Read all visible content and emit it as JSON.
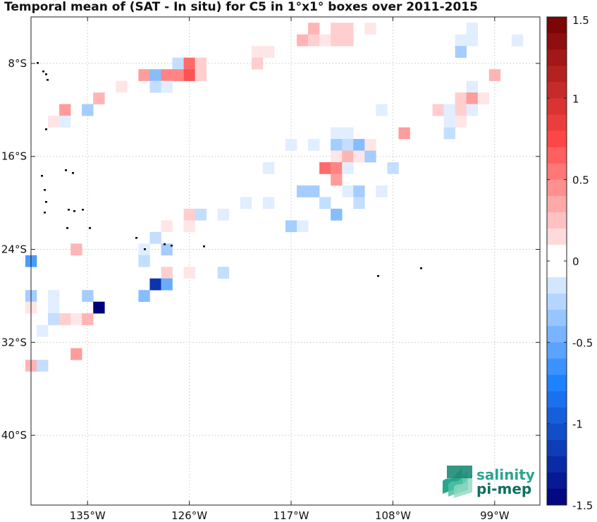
{
  "chart_data": {
    "type": "heatmap",
    "title": "Temporal mean of (SAT - In situ) for C5 in 1°x1° boxes over 2011-2015",
    "x_ticks": [
      "135°W",
      "126°W",
      "117°W",
      "108°W",
      "99°W"
    ],
    "x_tick_values": [
      -135,
      -126,
      -117,
      -108,
      -99
    ],
    "y_ticks": [
      "8°S",
      "16°S",
      "24°S",
      "32°S",
      "40°S"
    ],
    "y_tick_values": [
      -8,
      -16,
      -24,
      -32,
      -40
    ],
    "xlim": [
      -140,
      -95
    ],
    "ylim": [
      -46,
      -4
    ],
    "grid": true,
    "colorbar": {
      "min": -1.5,
      "max": 1.5,
      "step": 0.1,
      "tick_values": [
        1.5,
        1,
        0.5,
        0,
        -0.5,
        -1,
        -1.5
      ],
      "tick_labels": [
        "1.5",
        "1",
        "0.5",
        "0",
        "-0.5",
        "-1",
        "-1.5"
      ]
    },
    "cells": [
      {
        "lon": -115,
        "lat": -5,
        "v": 0.3
      },
      {
        "lon": -113,
        "lat": -5,
        "v": 0.2
      },
      {
        "lon": -112,
        "lat": -5,
        "v": 0.2
      },
      {
        "lon": -110,
        "lat": -5,
        "v": 0.1
      },
      {
        "lon": -101,
        "lat": -5,
        "v": -0.1
      },
      {
        "lon": -116,
        "lat": -6,
        "v": 0.3
      },
      {
        "lon": -115,
        "lat": -6,
        "v": 0.2
      },
      {
        "lon": -114,
        "lat": -6,
        "v": 0.1
      },
      {
        "lon": -113,
        "lat": -6,
        "v": 0.2
      },
      {
        "lon": -112,
        "lat": -6,
        "v": 0.2
      },
      {
        "lon": -102,
        "lat": -6,
        "v": -0.1
      },
      {
        "lon": -101,
        "lat": -6,
        "v": -0.1
      },
      {
        "lon": -97,
        "lat": -6,
        "v": -0.1
      },
      {
        "lon": -120,
        "lat": -7,
        "v": 0.1
      },
      {
        "lon": -119,
        "lat": -7,
        "v": 0.1
      },
      {
        "lon": -102,
        "lat": -7,
        "v": -0.3
      },
      {
        "lon": -127,
        "lat": -8,
        "v": -0.2
      },
      {
        "lon": -126,
        "lat": -8,
        "v": 0.6
      },
      {
        "lon": -125,
        "lat": -8,
        "v": 0.2
      },
      {
        "lon": -120,
        "lat": -8,
        "v": 0.2
      },
      {
        "lon": -130,
        "lat": -9,
        "v": 0.4
      },
      {
        "lon": -129,
        "lat": -9,
        "v": -0.4
      },
      {
        "lon": -128,
        "lat": -9,
        "v": 0.5
      },
      {
        "lon": -127,
        "lat": -9,
        "v": 0.5
      },
      {
        "lon": -126,
        "lat": -9,
        "v": 0.7
      },
      {
        "lon": -125,
        "lat": -9,
        "v": 0.2
      },
      {
        "lon": -99,
        "lat": -9,
        "v": 0.3
      },
      {
        "lon": -132,
        "lat": -10,
        "v": 0.1
      },
      {
        "lon": -129,
        "lat": -10,
        "v": -0.2
      },
      {
        "lon": -128,
        "lat": -10,
        "v": -0.1
      },
      {
        "lon": -101,
        "lat": -10,
        "v": -0.1
      },
      {
        "lon": -134,
        "lat": -11,
        "v": 0.3
      },
      {
        "lon": -102,
        "lat": -11,
        "v": 0.2
      },
      {
        "lon": -101,
        "lat": -11,
        "v": 0.4
      },
      {
        "lon": -100,
        "lat": -11,
        "v": 0.1
      },
      {
        "lon": -137,
        "lat": -12,
        "v": 0.4
      },
      {
        "lon": -135,
        "lat": -12,
        "v": -0.3
      },
      {
        "lon": -109,
        "lat": -12,
        "v": -0.1
      },
      {
        "lon": -104,
        "lat": -12,
        "v": 0.2
      },
      {
        "lon": -103,
        "lat": -12,
        "v": -0.1
      },
      {
        "lon": -102,
        "lat": -12,
        "v": 0.2
      },
      {
        "lon": -101,
        "lat": -12,
        "v": -0.1
      },
      {
        "lon": -138,
        "lat": -13,
        "v": 0.1
      },
      {
        "lon": -137,
        "lat": -13,
        "v": -0.1
      },
      {
        "lon": -103,
        "lat": -13,
        "v": -0.1
      },
      {
        "lon": -102,
        "lat": -13,
        "v": 0.1
      },
      {
        "lon": -113,
        "lat": -14,
        "v": -0.1
      },
      {
        "lon": -112,
        "lat": -14,
        "v": -0.1
      },
      {
        "lon": -107,
        "lat": -14,
        "v": 0.4
      },
      {
        "lon": -103,
        "lat": -14,
        "v": -0.2
      },
      {
        "lon": -117,
        "lat": -15,
        "v": -0.1
      },
      {
        "lon": -115,
        "lat": -15,
        "v": -0.1
      },
      {
        "lon": -113,
        "lat": -15,
        "v": -0.3
      },
      {
        "lon": -112,
        "lat": -15,
        "v": -0.2
      },
      {
        "lon": -111,
        "lat": -15,
        "v": -0.4
      },
      {
        "lon": -110,
        "lat": -15,
        "v": 0.1
      },
      {
        "lon": -113,
        "lat": -16,
        "v": 0.1
      },
      {
        "lon": -112,
        "lat": -16,
        "v": 0.3
      },
      {
        "lon": -111,
        "lat": -16,
        "v": 0.1
      },
      {
        "lon": -110,
        "lat": -16,
        "v": -0.3
      },
      {
        "lon": -119,
        "lat": -17,
        "v": -0.1
      },
      {
        "lon": -114,
        "lat": -17,
        "v": 0.6
      },
      {
        "lon": -113,
        "lat": -17,
        "v": 0.5
      },
      {
        "lon": -112,
        "lat": -17,
        "v": -0.1
      },
      {
        "lon": -108,
        "lat": -17,
        "v": -0.2
      },
      {
        "lon": -113,
        "lat": -18,
        "v": 0.4
      },
      {
        "lon": -116,
        "lat": -19,
        "v": -0.3
      },
      {
        "lon": -115,
        "lat": -19,
        "v": -0.3
      },
      {
        "lon": -112,
        "lat": -19,
        "v": -0.1
      },
      {
        "lon": -111,
        "lat": -19,
        "v": -0.3
      },
      {
        "lon": -109,
        "lat": -19,
        "v": -0.1
      },
      {
        "lon": -121,
        "lat": -20,
        "v": -0.1
      },
      {
        "lon": -119,
        "lat": -20,
        "v": -0.1
      },
      {
        "lon": -114,
        "lat": -20,
        "v": -0.2
      },
      {
        "lon": -111,
        "lat": -20,
        "v": -0.2
      },
      {
        "lon": -126,
        "lat": -21,
        "v": 0.2
      },
      {
        "lon": -125,
        "lat": -21,
        "v": -0.2
      },
      {
        "lon": -123,
        "lat": -21,
        "v": -0.1
      },
      {
        "lon": -113,
        "lat": -21,
        "v": -0.4
      },
      {
        "lon": -128,
        "lat": -22,
        "v": 0.1
      },
      {
        "lon": -126,
        "lat": -22,
        "v": 0.1
      },
      {
        "lon": -117,
        "lat": -22,
        "v": -0.3
      },
      {
        "lon": -116,
        "lat": -22,
        "v": -0.1
      },
      {
        "lon": -129,
        "lat": -23,
        "v": -0.2
      },
      {
        "lon": -136,
        "lat": -24,
        "v": 0.3
      },
      {
        "lon": -130,
        "lat": -24,
        "v": -0.1
      },
      {
        "lon": -128,
        "lat": -24,
        "v": -0.3
      },
      {
        "lon": -140,
        "lat": -25,
        "v": -0.6
      },
      {
        "lon": -130,
        "lat": -25,
        "v": -0.2
      },
      {
        "lon": -128,
        "lat": -26,
        "v": 0.2
      },
      {
        "lon": -126,
        "lat": -26,
        "v": 0.1
      },
      {
        "lon": -123,
        "lat": -26,
        "v": -0.2
      },
      {
        "lon": -129,
        "lat": -27,
        "v": -1.2
      },
      {
        "lon": -128,
        "lat": -27,
        "v": -0.5
      },
      {
        "lon": -140,
        "lat": -28,
        "v": -0.3
      },
      {
        "lon": -138,
        "lat": -28,
        "v": -0.1
      },
      {
        "lon": -135,
        "lat": -28,
        "v": -0.3
      },
      {
        "lon": -130,
        "lat": -28,
        "v": -0.4
      },
      {
        "lon": -140,
        "lat": -29,
        "v": 0.1
      },
      {
        "lon": -138,
        "lat": -29,
        "v": -0.1
      },
      {
        "lon": -134,
        "lat": -29,
        "v": -1.5
      },
      {
        "lon": -138,
        "lat": -30,
        "v": -0.2
      },
      {
        "lon": -137,
        "lat": -30,
        "v": 0.2
      },
      {
        "lon": -136,
        "lat": -30,
        "v": 0.1
      },
      {
        "lon": -135,
        "lat": -30,
        "v": 0.3
      },
      {
        "lon": -139,
        "lat": -31,
        "v": -0.1
      },
      {
        "lon": -136,
        "lat": -33,
        "v": 0.4
      },
      {
        "lon": -140,
        "lat": -34,
        "v": 0.3
      },
      {
        "lon": -139,
        "lat": -34,
        "v": -0.2
      }
    ]
  },
  "logo": {
    "line1": "salinity",
    "line2": "pi-mep"
  }
}
